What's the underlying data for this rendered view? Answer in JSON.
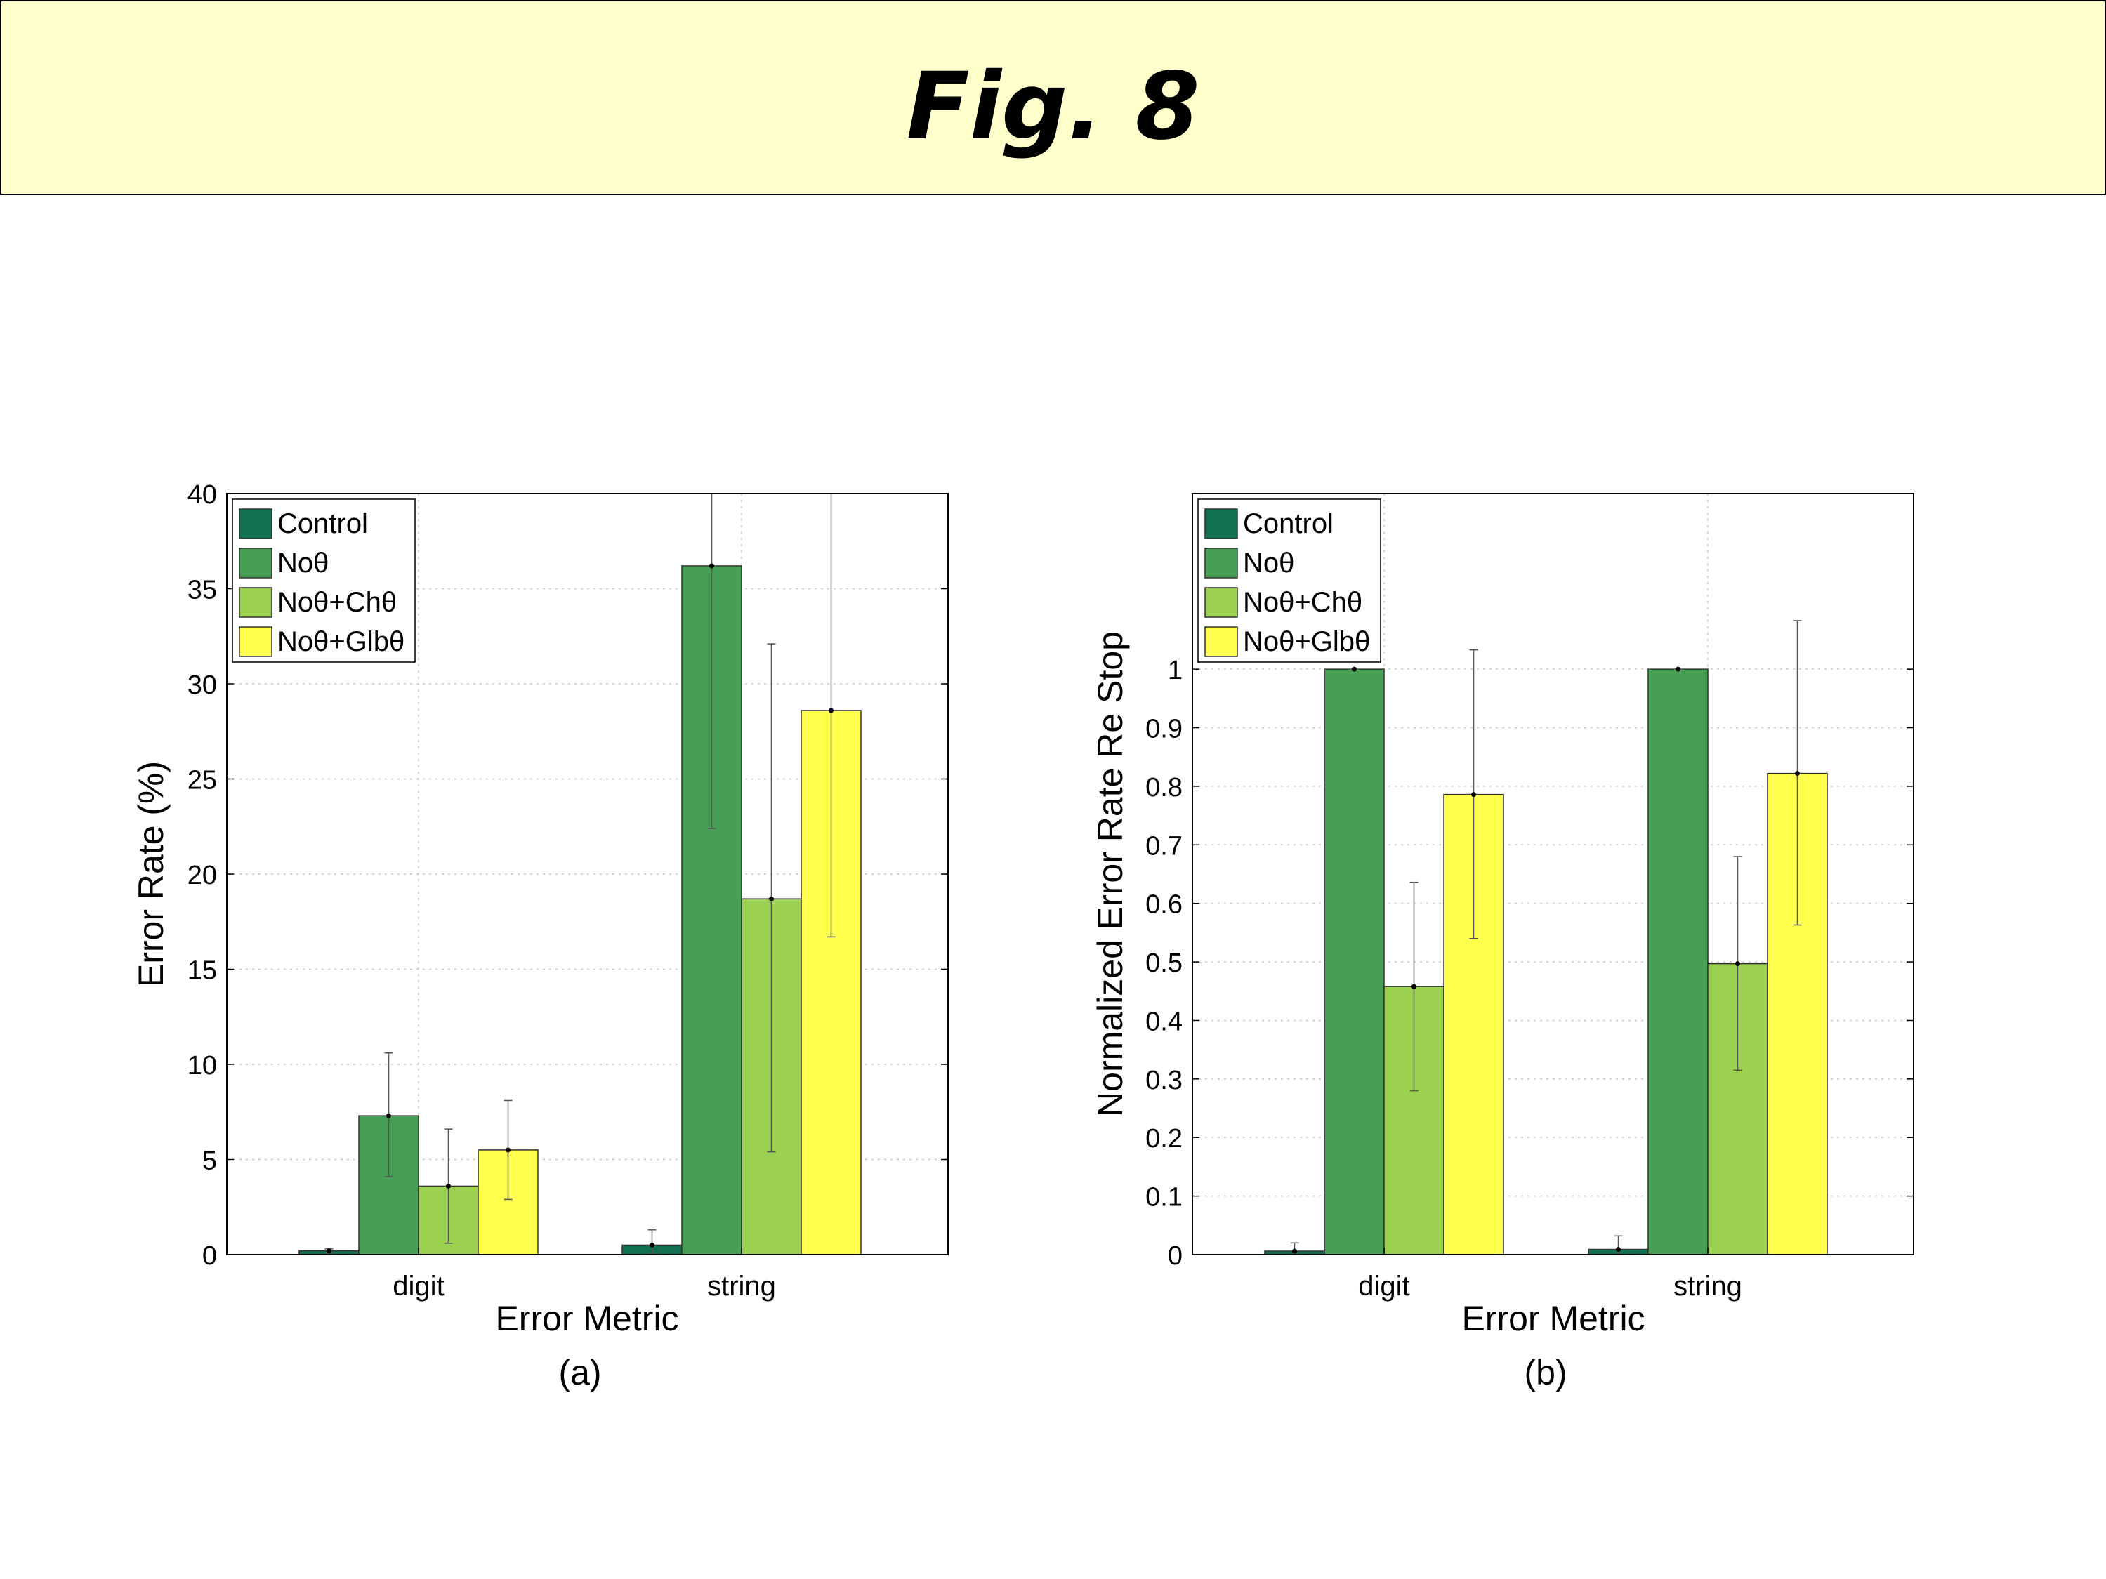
{
  "header": {
    "title": "Fig. 8"
  },
  "colors": {
    "Control": "#10704f",
    "Noθ": "#479e55",
    "Noθ+Chθ": "#9cd050",
    "Noθ+Glbθ": "#ffff4d"
  },
  "chart_data": [
    {
      "type": "bar",
      "caption": "(a)",
      "categories": [
        "digit",
        "string"
      ],
      "xlabel": "Error Metric",
      "ylabel": "Error Rate (%)",
      "ylim": [
        0,
        40
      ],
      "yticks": [
        "0",
        "5",
        "10",
        "15",
        "20",
        "25",
        "30",
        "35",
        "40"
      ],
      "grid": true,
      "legend_position": "top-left",
      "series": [
        {
          "name": "Control",
          "values": [
            0.2,
            0.5
          ],
          "err_low": [
            0.1,
            0.1
          ],
          "err_high": [
            0.3,
            1.3
          ]
        },
        {
          "name": "Noθ",
          "values": [
            7.3,
            36.2
          ],
          "err_low": [
            4.1,
            22.4
          ],
          "err_high": [
            10.6,
            40
          ]
        },
        {
          "name": "Noθ+Chθ",
          "values": [
            3.6,
            18.7
          ],
          "err_low": [
            0.6,
            5.4
          ],
          "err_high": [
            6.6,
            32.1
          ]
        },
        {
          "name": "Noθ+Glbθ",
          "values": [
            5.5,
            28.6
          ],
          "err_low": [
            2.9,
            16.7
          ],
          "err_high": [
            8.1,
            40
          ]
        }
      ]
    },
    {
      "type": "bar",
      "caption": "(b)",
      "categories": [
        "digit",
        "string"
      ],
      "xlabel": "Error Metric",
      "ylabel": "Normalized Error Rate Re Stop",
      "ylim": [
        0,
        1.3
      ],
      "yticks": [
        "0",
        "0.1",
        "0.2",
        "0.3",
        "0.4",
        "0.5",
        "0.6",
        "0.7",
        "0.8",
        "0.9",
        "1"
      ],
      "grid": true,
      "legend_position": "top-left",
      "series": [
        {
          "name": "Control",
          "values": [
            0.006,
            0.009
          ],
          "err_low": [
            0.0,
            0.0
          ],
          "err_high": [
            0.02,
            0.032
          ]
        },
        {
          "name": "Noθ",
          "values": [
            1.0,
            1.0
          ],
          "err_low": [
            1.0,
            1.0
          ],
          "err_high": [
            1.0,
            1.0
          ]
        },
        {
          "name": "Noθ+Chθ",
          "values": [
            0.458,
            0.497
          ],
          "err_low": [
            0.28,
            0.315
          ],
          "err_high": [
            0.636,
            0.68
          ]
        },
        {
          "name": "Noθ+Glbθ",
          "values": [
            0.786,
            0.822
          ],
          "err_low": [
            0.54,
            0.563
          ],
          "err_high": [
            1.033,
            1.083
          ]
        }
      ]
    }
  ]
}
